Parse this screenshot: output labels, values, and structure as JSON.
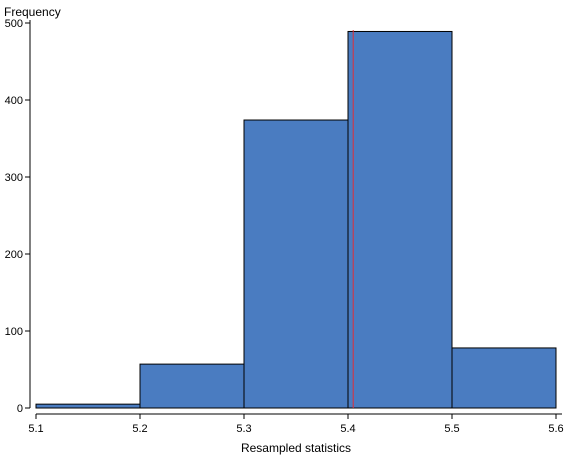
{
  "chart_data": {
    "type": "histogram",
    "ylabel": "Frequency",
    "xlabel": "Resampled statistics",
    "bins": [
      {
        "x0": 5.1,
        "x1": 5.2,
        "value": 5
      },
      {
        "x0": 5.2,
        "x1": 5.3,
        "value": 57
      },
      {
        "x0": 5.3,
        "x1": 5.4,
        "value": 374
      },
      {
        "x0": 5.4,
        "x1": 5.5,
        "value": 489
      },
      {
        "x0": 5.5,
        "x1": 5.6,
        "value": 78
      }
    ],
    "xlim": [
      5.1,
      5.6
    ],
    "ylim": [
      0,
      500
    ],
    "x_ticks": [
      "5.1",
      "5.2",
      "5.3",
      "5.4",
      "5.5",
      "5.6"
    ],
    "y_ticks": [
      "0",
      "100",
      "200",
      "300",
      "400",
      "500"
    ],
    "reference_line": {
      "x": 5.405,
      "color": "#e0303a"
    },
    "bar_color": "#4a7cc1",
    "bar_edge_color": "#000000",
    "grid": false,
    "legend": "none"
  }
}
